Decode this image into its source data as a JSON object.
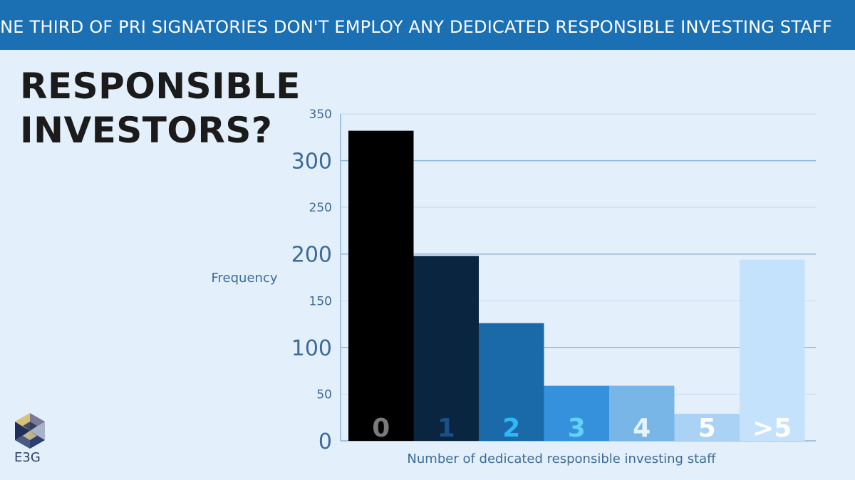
{
  "banner": {
    "text": "ONE THIRD OF PRI SIGNATORIES DON'T EMPLOY ANY DEDICATED RESPONSIBLE INVESTING STAFF"
  },
  "headline": {
    "line1": "RESPONSIBLE",
    "line2": "INVESTORS?"
  },
  "logo": {
    "text": "E3G"
  },
  "colors": {
    "banner": "#1b6fb3",
    "background": "#e3f0fb",
    "axis_text": "#3d6a98"
  },
  "chart_data": {
    "type": "bar",
    "categories": [
      "0",
      "1",
      "2",
      "3",
      "4",
      "5",
      ">5"
    ],
    "values": [
      332,
      198,
      126,
      59,
      59,
      29,
      194
    ],
    "bar_colors": [
      "#000000",
      "#0a2540",
      "#1a6aaa",
      "#3691dc",
      "#78b6e8",
      "#a9d2f4",
      "#c4e2fc"
    ],
    "label_colors": [
      "#7a7a7a",
      "#1b4f88",
      "#30b8f2",
      "#63d2f8",
      "#e6f3fd",
      "#ffffff",
      "#ffffff"
    ],
    "xlabel": "Number of dedicated responsible investing staff",
    "ylabel": "Frequency",
    "ylim": [
      0,
      350
    ],
    "yticks": [
      0,
      50,
      100,
      150,
      200,
      250,
      300,
      350
    ],
    "major_ticks": [
      0,
      100,
      200,
      300
    ],
    "grid": true
  }
}
